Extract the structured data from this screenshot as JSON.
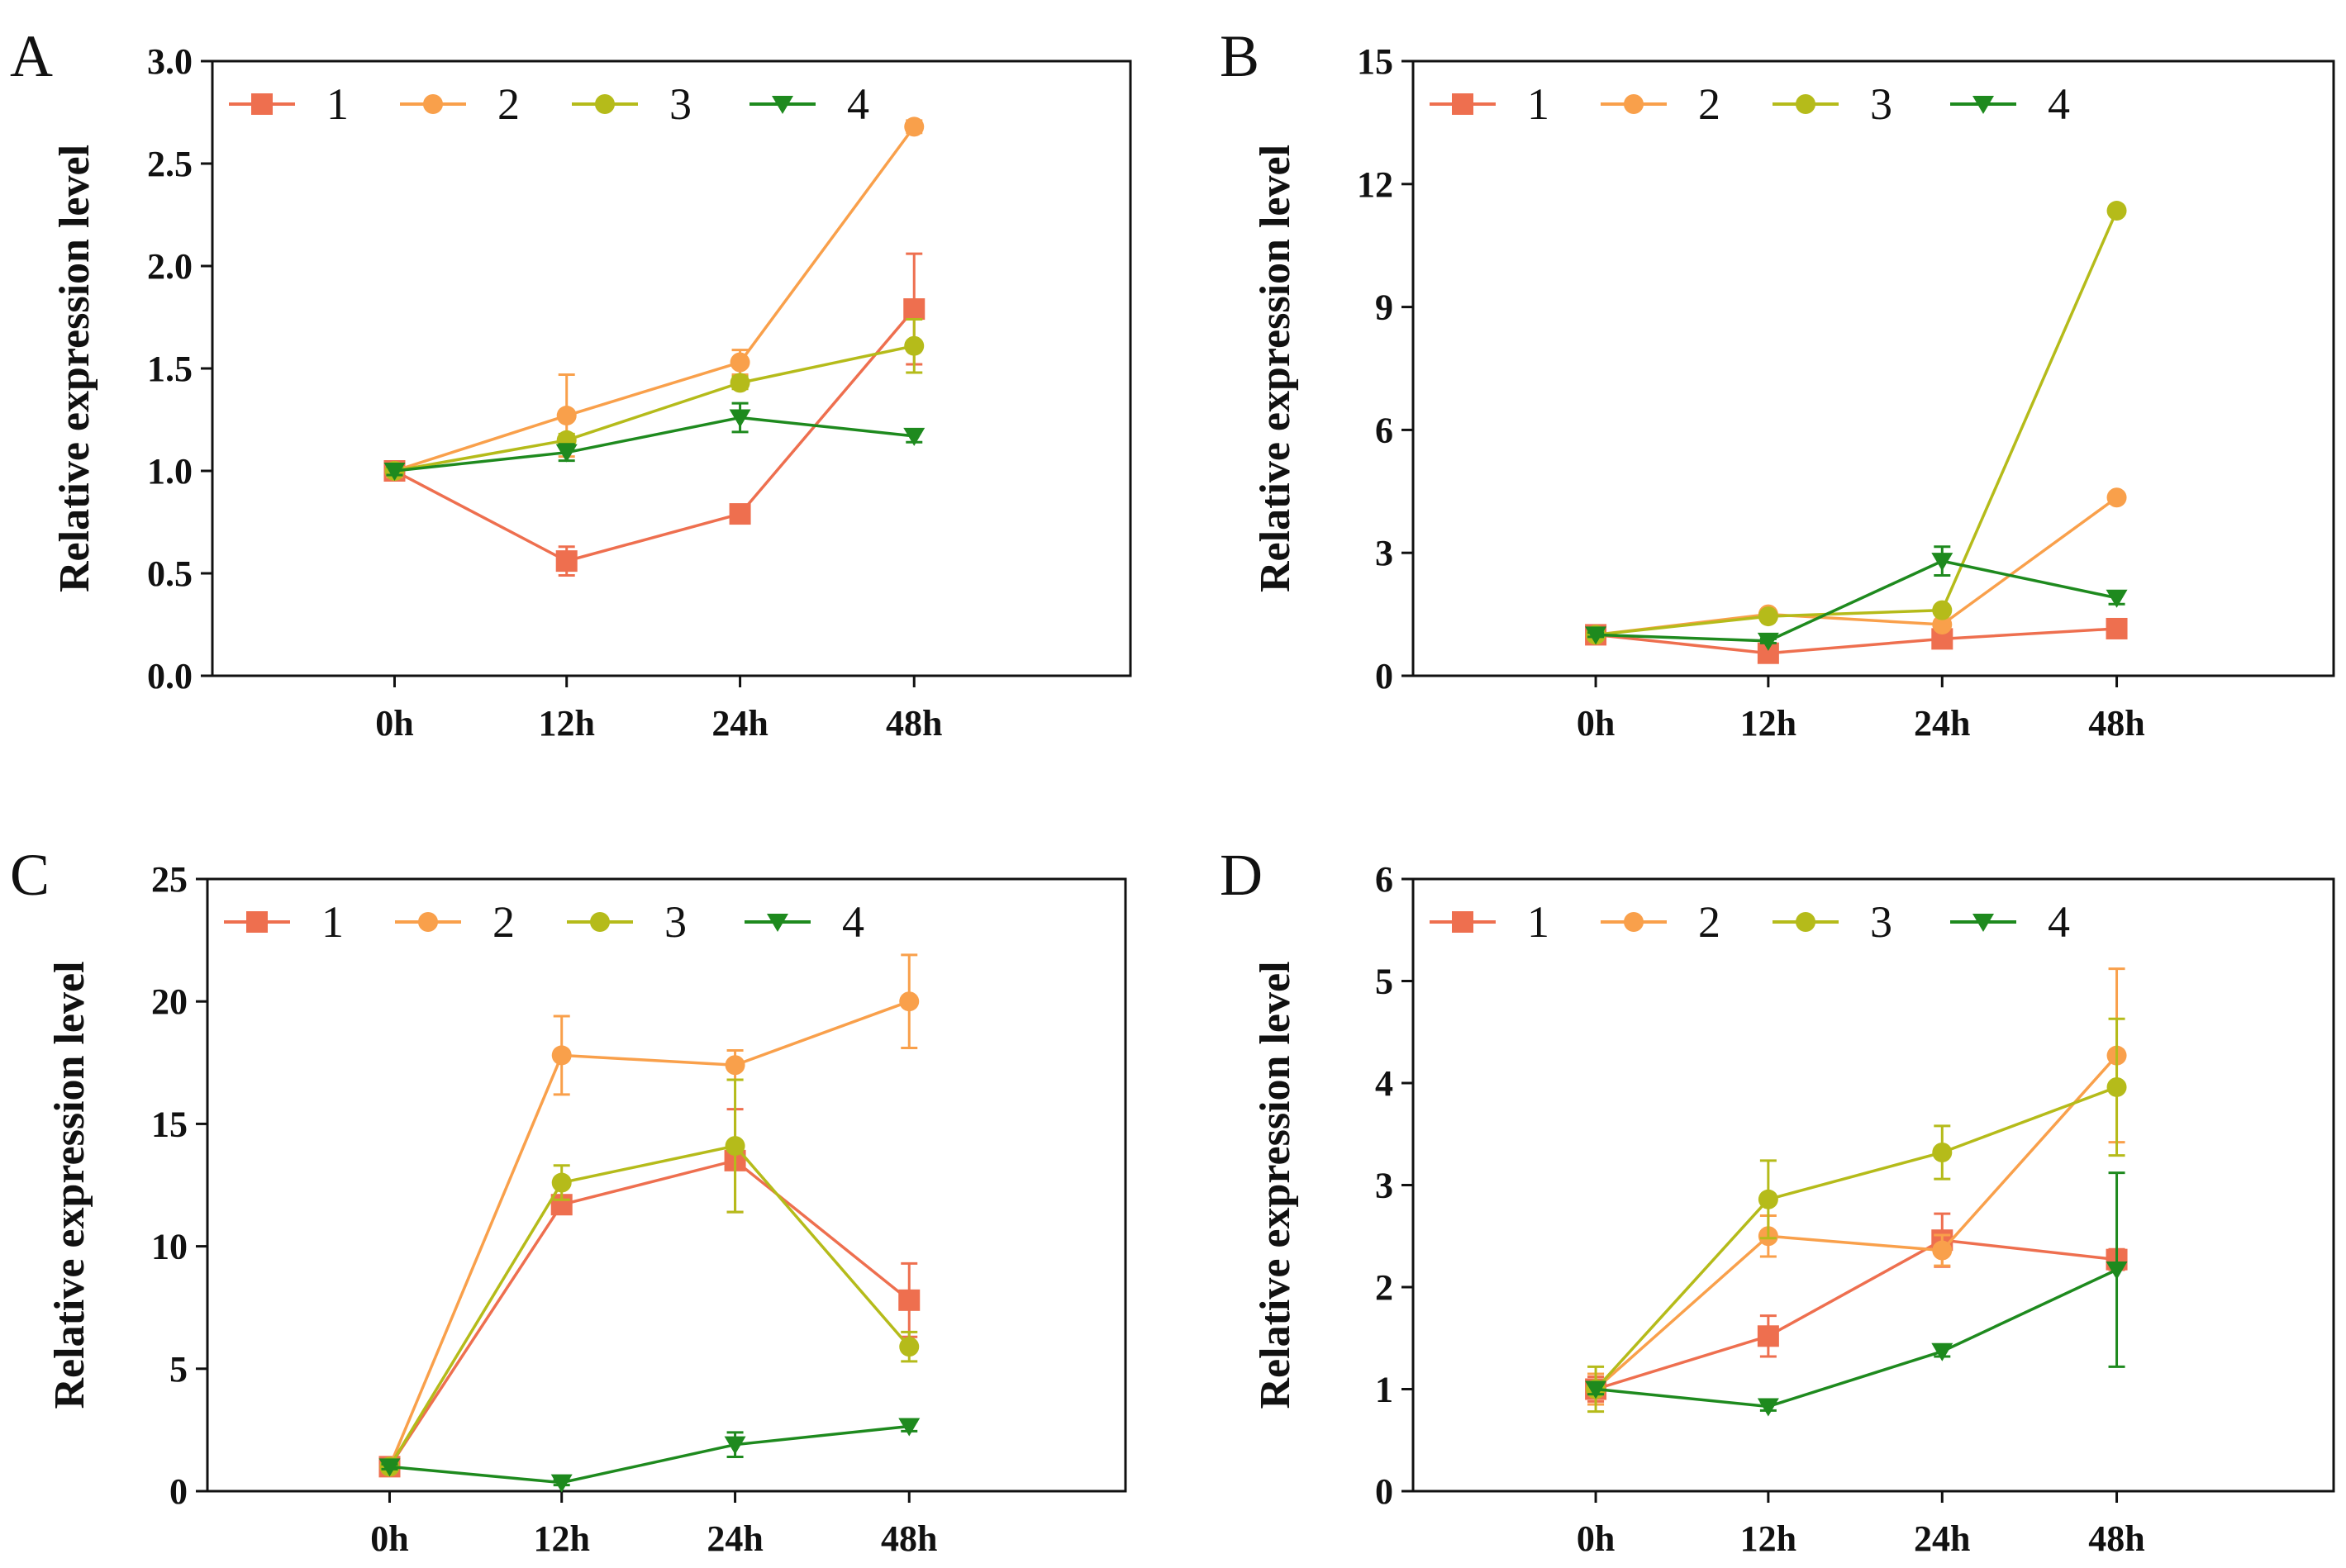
{
  "figure": {
    "categories": [
      "0h",
      "12h",
      "24h",
      "48h"
    ],
    "legend": [
      "1",
      "2",
      "3",
      "4"
    ],
    "colors": {
      "1": "#ee6f4f",
      "2": "#f9a04b",
      "3": "#b5bb1a",
      "4": "#1e8a1e"
    },
    "markers": {
      "1": "square",
      "2": "circle",
      "3": "circle",
      "4": "triangle-down"
    }
  },
  "chart_data": [
    {
      "type": "line",
      "panel": "A",
      "ylabel": "Relative expression level",
      "xlabel": "",
      "categories": [
        "0h",
        "12h",
        "24h",
        "48h"
      ],
      "ylim": [
        0,
        3.0
      ],
      "yticks": [
        "0.0",
        "0.5",
        "1.0",
        "1.5",
        "2.0",
        "2.5",
        "3.0"
      ],
      "series": [
        {
          "name": "1",
          "values": [
            1.0,
            0.56,
            0.79,
            1.79
          ],
          "errors": [
            0.03,
            0.07,
            0.02,
            0.27
          ]
        },
        {
          "name": "2",
          "values": [
            1.0,
            1.27,
            1.53,
            2.68
          ],
          "errors": [
            0.03,
            0.2,
            0.06,
            0.03
          ]
        },
        {
          "name": "3",
          "values": [
            1.0,
            1.15,
            1.43,
            1.61
          ],
          "errors": [
            0.02,
            0.03,
            0.03,
            0.13
          ]
        },
        {
          "name": "4",
          "values": [
            1.0,
            1.09,
            1.26,
            1.17
          ],
          "errors": [
            0.02,
            0.04,
            0.07,
            0.03
          ]
        }
      ]
    },
    {
      "type": "line",
      "panel": "B",
      "ylabel": "Relative expression level",
      "xlabel": "",
      "categories": [
        "0h",
        "12h",
        "24h",
        "48h"
      ],
      "ylim": [
        0,
        15
      ],
      "yticks": [
        "0",
        "3",
        "6",
        "9",
        "12",
        "15"
      ],
      "series": [
        {
          "name": "1",
          "values": [
            1.0,
            0.55,
            0.9,
            1.15
          ],
          "errors": [
            0.05,
            0.05,
            0.05,
            0.08
          ]
        },
        {
          "name": "2",
          "values": [
            1.0,
            1.5,
            1.25,
            4.35
          ],
          "errors": [
            0.05,
            0.1,
            0.08,
            0.1
          ]
        },
        {
          "name": "3",
          "values": [
            1.0,
            1.45,
            1.6,
            11.35
          ],
          "errors": [
            0.05,
            0.08,
            0.1,
            0.1
          ]
        },
        {
          "name": "4",
          "values": [
            1.0,
            0.85,
            2.8,
            1.9
          ],
          "errors": [
            0.05,
            0.05,
            0.35,
            0.15
          ]
        }
      ]
    },
    {
      "type": "line",
      "panel": "C",
      "ylabel": "Relative expression level",
      "xlabel": "",
      "categories": [
        "0h",
        "12h",
        "24h",
        "48h"
      ],
      "ylim": [
        0,
        25
      ],
      "yticks": [
        "0",
        "5",
        "10",
        "15",
        "20",
        "25"
      ],
      "series": [
        {
          "name": "1",
          "values": [
            1.0,
            11.7,
            13.5,
            7.8
          ],
          "errors": [
            0.1,
            0.3,
            2.1,
            1.5
          ]
        },
        {
          "name": "2",
          "values": [
            1.0,
            17.8,
            17.4,
            20.0
          ],
          "errors": [
            0.1,
            1.6,
            0.6,
            1.9
          ]
        },
        {
          "name": "3",
          "values": [
            1.0,
            12.6,
            14.1,
            5.9
          ],
          "errors": [
            0.1,
            0.7,
            2.7,
            0.6
          ]
        },
        {
          "name": "4",
          "values": [
            1.0,
            0.35,
            1.9,
            2.65
          ],
          "errors": [
            0.1,
            0.1,
            0.5,
            0.2
          ]
        }
      ]
    },
    {
      "type": "line",
      "panel": "D",
      "ylabel": "Relative expression level",
      "xlabel": "",
      "categories": [
        "0h",
        "12h",
        "24h",
        "48h"
      ],
      "ylim": [
        0,
        6
      ],
      "yticks": [
        "0",
        "1",
        "2",
        "3",
        "4",
        "5",
        "6"
      ],
      "series": [
        {
          "name": "1",
          "values": [
            1.0,
            1.52,
            2.46,
            2.27
          ],
          "errors": [
            0.12,
            0.2,
            0.26,
            0.1
          ]
        },
        {
          "name": "2",
          "values": [
            1.0,
            2.5,
            2.36,
            4.27
          ],
          "errors": [
            0.15,
            0.2,
            0.15,
            0.85
          ]
        },
        {
          "name": "3",
          "values": [
            1.0,
            2.86,
            3.32,
            3.96
          ],
          "errors": [
            0.22,
            0.38,
            0.26,
            0.67
          ]
        },
        {
          "name": "4",
          "values": [
            1.0,
            0.83,
            1.37,
            2.17
          ],
          "errors": [
            0.05,
            0.04,
            0.05,
            0.95
          ]
        }
      ]
    }
  ]
}
